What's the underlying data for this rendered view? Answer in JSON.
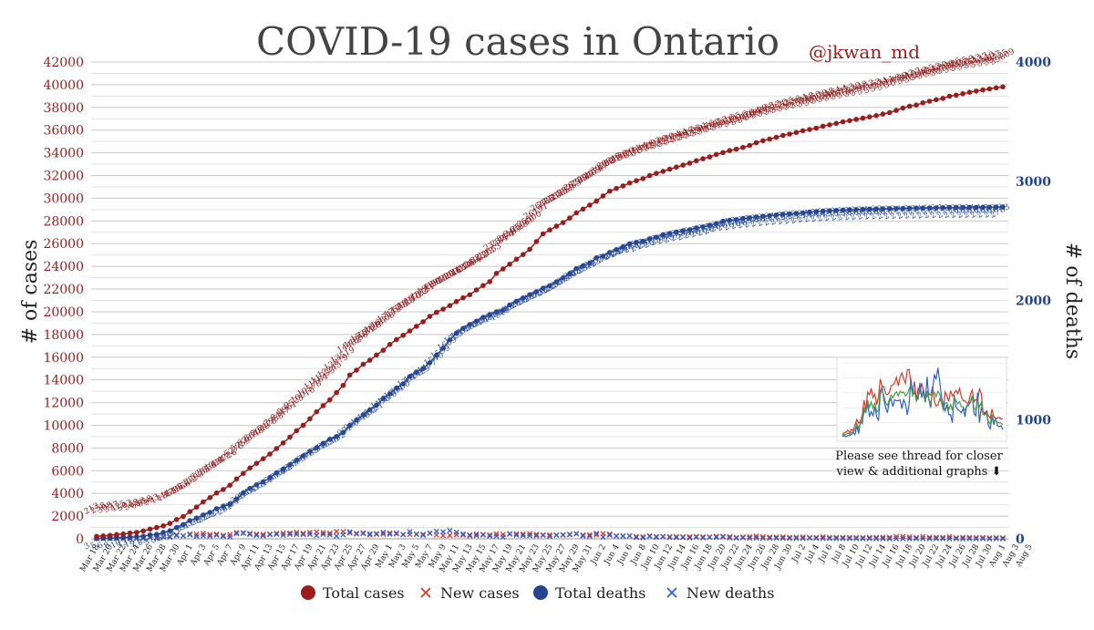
{
  "chart_data": {
    "type": "line",
    "title": "COVID-19 cases in Ontario",
    "author": "@jkwan_md",
    "ylabel_left": "# of cases",
    "ylabel_right": "# of deaths",
    "y_left_range": [
      0,
      42000
    ],
    "y_left_ticks": [
      "0",
      "2000",
      "4000",
      "6000",
      "8000",
      "10000",
      "12000",
      "14000",
      "16000",
      "18000",
      "20000",
      "22000",
      "24000",
      "26000",
      "28000",
      "30000",
      "32000",
      "34000",
      "36000",
      "38000",
      "40000",
      "42000"
    ],
    "y_right_range": [
      0,
      4000
    ],
    "y_right_ticks": [
      "0",
      "1000",
      "2000",
      "3000",
      "4000"
    ],
    "grid": true,
    "legend_position": "bottom",
    "x_tick_labels": [
      "Mar 18",
      "Mar 20",
      "Mar 22",
      "Mar 24",
      "Mar 26",
      "Mar 28",
      "Mar 30",
      "Apr 1",
      "Apr 3",
      "Apr 5",
      "Apr 7",
      "Apr 9",
      "Apr 11",
      "Apr 13",
      "Apr 15",
      "Apr 17",
      "Apr 19",
      "Apr 21",
      "Apr 23",
      "Apr 25",
      "Apr 27",
      "Apr 29",
      "May 1",
      "May 3",
      "May 5",
      "May 7",
      "May 9",
      "May 11",
      "May 13",
      "May 15",
      "May 17",
      "May 19",
      "May 21",
      "May 23",
      "May 25",
      "May 27",
      "May 29",
      "May 31",
      "Jun 2",
      "Jun 4",
      "Jun 6",
      "Jun 8",
      "Jun 10",
      "Jun 12",
      "Jun 14",
      "Jun 16",
      "Jun 18",
      "Jun 20",
      "Jun 22",
      "Jun 24",
      "Jun 26",
      "Jun 28",
      "Jun 30",
      "Jul 2",
      "Jul 4",
      "Jul 6",
      "Jul 8",
      "Jul 10",
      "Jul 12",
      "Jul 14",
      "Jul 16",
      "Jul 18",
      "Jul 20",
      "Jul 22",
      "Jul 24",
      "Jul 26",
      "Jul 28",
      "Jul 30",
      "Aug 1",
      "Aug 3",
      "Aug 5"
    ],
    "series": [
      {
        "name": "Total cases",
        "axis": "left",
        "color": "#9b1c1c",
        "marker": "circle",
        "values": [
          213,
          258,
          308,
          377,
          425,
          503,
          568,
          688,
          858,
          993,
          1144,
          1355,
          1706,
          1966,
          2392,
          2793,
          3255,
          3630,
          4038,
          4347,
          4726,
          5276,
          5759,
          6237,
          6648,
          7049,
          7470,
          7953,
          8447,
          8961,
          9525,
          10010,
          10578,
          11184,
          11735,
          12245,
          12879,
          13519,
          14432,
          14856,
          15381,
          15728,
          16187,
          16608,
          17119,
          17553,
          17923,
          18310,
          18722,
          19121,
          19598,
          19944,
          20238,
          20546,
          20907,
          21236,
          21494,
          21922,
          22313,
          22653,
          23384,
          23774,
          24187,
          24628,
          25040,
          25500,
          26191,
          26866,
          27210,
          27533,
          27859,
          28263,
          28709,
          29047,
          29403,
          29747,
          30202,
          30617,
          30860,
          31090,
          31341,
          31544,
          31726,
          31992,
          32189,
          32370,
          32554,
          32744,
          32917,
          33095,
          33301,
          33476,
          33637,
          33853,
          34016,
          34205,
          34316,
          34476,
          34654,
          34889,
          35068,
          35217,
          35370,
          35535,
          35656,
          35794,
          35948,
          36060,
          36178,
          36348,
          36464,
          36594,
          36723,
          36839,
          36948,
          37052,
          37163,
          37274,
          37411,
          37542,
          37739,
          37942,
          38107,
          38210,
          38405,
          38543,
          38680,
          38799,
          38986,
          39075,
          39209,
          39333,
          39437,
          39540,
          39627,
          39725,
          39809
        ],
        "end_label": "39809"
      },
      {
        "name": "New cases",
        "axis": "left",
        "color": "#d63b2a",
        "marker": "x",
        "values": [
          32,
          45,
          50,
          69,
          48,
          78,
          65,
          120,
          170,
          135,
          151,
          211,
          351,
          260,
          426,
          401,
          462,
          375,
          408,
          309,
          379,
          550,
          483,
          478,
          411,
          401,
          421,
          483,
          494,
          514,
          564,
          485,
          568,
          606,
          551,
          510,
          634,
          640,
          513,
          424,
          525,
          347,
          459,
          421,
          511,
          434,
          370,
          387,
          412,
          399,
          477,
          346,
          294,
          308,
          361,
          329,
          258,
          428,
          391,
          340,
          440,
          390,
          413,
          441,
          412,
          460,
          383,
          346,
          344,
          323,
          326,
          404,
          446,
          338,
          356,
          344,
          455,
          415,
          243,
          230,
          251,
          203,
          182,
          266,
          197,
          181,
          184,
          190,
          173,
          178,
          206,
          175,
          161,
          216,
          163,
          189,
          111,
          160,
          178,
          235,
          179,
          149,
          153,
          165,
          121,
          138,
          154,
          112,
          118,
          170,
          116,
          130,
          129,
          116,
          109,
          104,
          111,
          111,
          137,
          131,
          197,
          203,
          165,
          103,
          195,
          138,
          137,
          119,
          187,
          89,
          134,
          124,
          104,
          103,
          87,
          98,
          84
        ]
      },
      {
        "name": "Total deaths",
        "axis": "right",
        "color": "#24448f",
        "marker": "circle",
        "values": [
          3,
          5,
          6,
          8,
          10,
          13,
          18,
          21,
          33,
          37,
          53,
          67,
          94,
          119,
          153,
          174,
          200,
          222,
          253,
          274,
          291,
          334,
          385,
          423,
          453,
          478,
          514,
          553,
          584,
          622,
          659,
          696,
          734,
          763,
          801,
          835,
          858,
          892,
          951,
          996,
          1040,
          1082,
          1121,
          1176,
          1216,
          1264,
          1300,
          1361,
          1399,
          1429,
          1477,
          1540,
          1599,
          1669,
          1725,
          1765,
          1798,
          1825,
          1858,
          1881,
          1904,
          1919,
          1962,
          1993,
          2021,
          2048,
          2073,
          2102,
          2123,
          2155,
          2189,
          2224,
          2266,
          2290,
          2312,
          2357,
          2372,
          2402,
          2426,
          2450,
          2475,
          2487,
          2496,
          2517,
          2530,
          2550,
          2562,
          2573,
          2585,
          2593,
          2608,
          2617,
          2630,
          2643,
          2664,
          2672,
          2678,
          2687,
          2693,
          2700,
          2706,
          2711,
          2717,
          2722,
          2726,
          2730,
          2734,
          2740,
          2745,
          2749,
          2752,
          2755,
          2758,
          2760,
          2762,
          2764,
          2766,
          2768,
          2769,
          2770,
          2771,
          2772,
          2773,
          2774,
          2775,
          2776,
          2777,
          2778,
          2779,
          2780,
          2780,
          2781,
          2781,
          2782,
          2782,
          2783,
          2783
        ],
        "end_label": "2783"
      },
      {
        "name": "New deaths",
        "axis": "right",
        "color": "#2f5fcf",
        "marker": "x",
        "values": [
          1,
          2,
          1,
          2,
          2,
          3,
          5,
          3,
          12,
          4,
          16,
          14,
          27,
          25,
          34,
          21,
          26,
          22,
          31,
          21,
          17,
          43,
          51,
          38,
          30,
          25,
          36,
          39,
          31,
          38,
          37,
          37,
          38,
          29,
          38,
          34,
          23,
          34,
          59,
          45,
          44,
          42,
          39,
          55,
          40,
          48,
          36,
          61,
          38,
          30,
          48,
          63,
          59,
          70,
          56,
          40,
          33,
          27,
          33,
          23,
          23,
          15,
          43,
          31,
          28,
          27,
          25,
          29,
          21,
          32,
          34,
          35,
          42,
          24,
          22,
          45,
          15,
          30,
          24,
          24,
          25,
          12,
          9,
          21,
          13,
          20,
          12,
          11,
          12,
          8,
          15,
          9,
          13,
          13,
          21,
          8,
          6,
          9,
          6,
          7,
          6,
          5,
          6,
          5,
          4,
          4,
          4,
          6,
          5,
          4,
          3,
          3,
          3,
          2,
          2,
          2,
          2,
          2,
          1,
          1,
          1,
          1,
          1,
          1,
          1,
          1,
          1,
          1,
          1,
          1,
          0,
          1,
          0,
          1,
          0,
          1,
          0
        ]
      }
    ],
    "legend": [
      {
        "label": "Total cases",
        "marker": "circle",
        "color": "#9b1c1c"
      },
      {
        "label": "New cases",
        "marker": "x",
        "color": "#d63b2a"
      },
      {
        "label": "Total deaths",
        "marker": "circle",
        "color": "#24448f"
      },
      {
        "label": "New deaths",
        "marker": "x",
        "color": "#2f5fcf"
      }
    ],
    "inset": {
      "caption_line1": "Please see thread for closer",
      "caption_line2": "view & additional graphs ⬇"
    }
  }
}
